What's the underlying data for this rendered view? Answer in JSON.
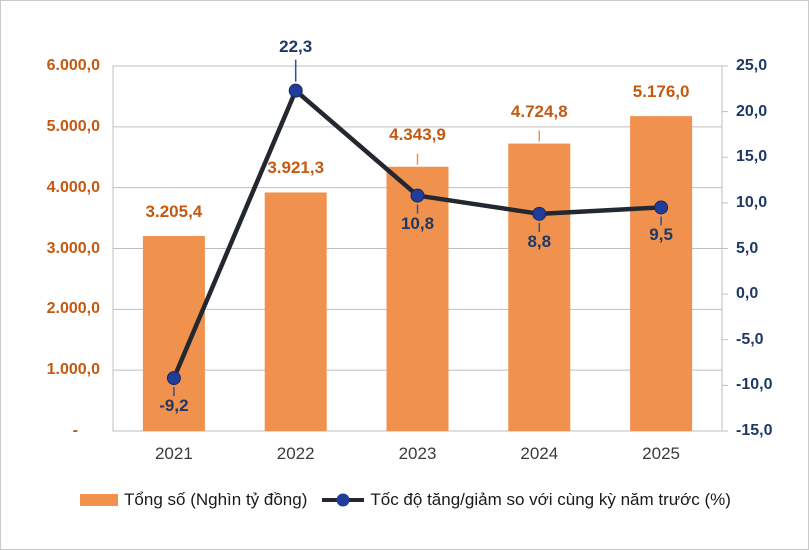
{
  "legend": {
    "bar_label": "Tổng số (Nghìn tỷ đồng)",
    "line_label": "Tốc độ tăng/giảm so với cùng kỳ năm trước (%)"
  },
  "chart_data": {
    "type": "combo",
    "title": "",
    "categories": [
      "2021",
      "2022",
      "2023",
      "2024",
      "2025"
    ],
    "series": [
      {
        "name": "Tổng số (Nghìn tỷ đồng)",
        "type": "bar",
        "axis": "left",
        "values": [
          3205.4,
          3921.3,
          4343.9,
          4724.8,
          5176.0
        ],
        "data_labels": [
          "3.205,4",
          "3.921,3",
          "4.343,9",
          "4.724,8",
          "5.176,0"
        ],
        "label_leader": [
          false,
          false,
          true,
          true,
          false
        ]
      },
      {
        "name": "Tốc độ tăng/giảm so với cùng kỳ năm trước (%)",
        "type": "line",
        "axis": "right",
        "values": [
          -9.2,
          22.3,
          10.8,
          8.8,
          9.5
        ],
        "data_labels": [
          "-9,2",
          "22,3",
          "10,8",
          "8,8",
          "9,5"
        ],
        "label_pos": [
          "below",
          "above",
          "below",
          "below",
          "below"
        ]
      }
    ],
    "left_axis": {
      "min": 0,
      "max": 6000,
      "tick_values": [
        6000,
        5000,
        4000,
        3000,
        2000,
        1000,
        0
      ],
      "tick_labels": [
        "6.000,0",
        "5.000,0",
        "4.000,0",
        "3.000,0",
        "2.000,0",
        "1.000,0",
        "-"
      ]
    },
    "right_axis": {
      "min": -15,
      "max": 25,
      "tick_values": [
        25,
        20,
        15,
        10,
        5,
        0,
        -5,
        -10,
        -15
      ],
      "tick_labels": [
        "25,0",
        "20,0",
        "15,0",
        "10,0",
        "5,0",
        "0,0",
        "-5,0",
        "-10,0",
        "-15,0"
      ]
    },
    "grid": true,
    "legend_position": "bottom",
    "colors": {
      "bar_fill": "#F0914E",
      "bar_label_text": "#C45911",
      "left_axis_text": "#C45911",
      "line_stroke": "#23272F",
      "marker_fill": "#1F3D99",
      "marker_edge": "#16295C",
      "line_label_text": "#1F3864",
      "right_axis_text": "#1F3864",
      "x_axis_text": "#3B3B3B",
      "gridline": "#BFBFBF",
      "plot_border": "#BFBFBF",
      "leader_blue": "#2E4E9E",
      "leader_orange": "#F0914E"
    }
  }
}
